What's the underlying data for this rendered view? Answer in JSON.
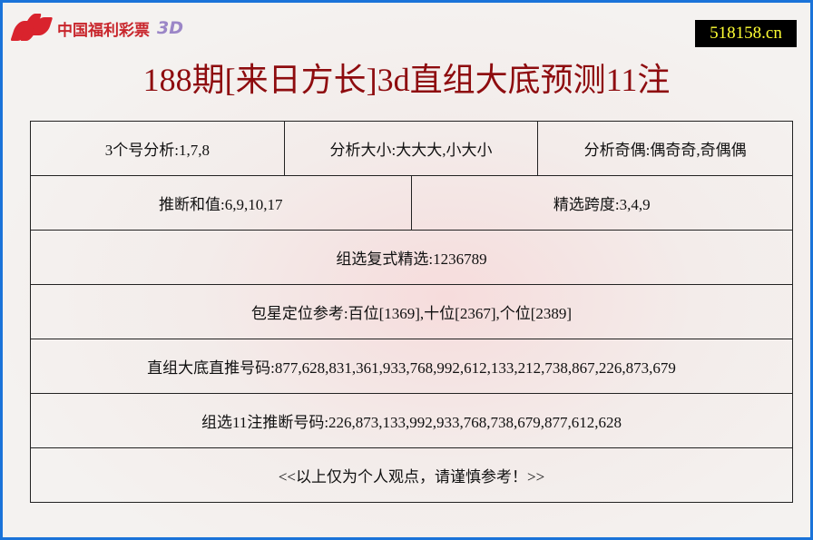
{
  "header": {
    "logo_text": "中国福利彩票",
    "logo_suffix": "3D",
    "site": "518158.cn",
    "title": "188期[来日方长]3d直组大底预测11注"
  },
  "rows": {
    "r1": [
      "3个号分析:1,7,8",
      "分析大小:大大大,小大小",
      "分析奇偶:偶奇奇,奇偶偶"
    ],
    "r2": [
      "推断和值:6,9,10,17",
      "精选跨度:3,4,9"
    ],
    "r3": "组选复式精选:1236789",
    "r4": "包星定位参考:百位[1369],十位[2367],个位[2389]",
    "r5": "直组大底直推号码:877,628,831,361,933,768,992,612,133,212,738,867,226,873,679",
    "r6": "组选11注推断号码:226,873,133,992,933,768,738,679,877,612,628",
    "r7": "<<以上仅为个人观点，请谨慎参考！>>"
  },
  "colors": {
    "border": "#1a73d9",
    "title": "#8e0c0f",
    "site_bg": "#000000",
    "site_fg": "#ffff33"
  }
}
